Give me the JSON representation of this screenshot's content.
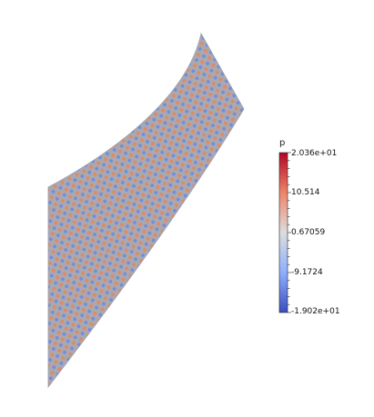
{
  "viewer": {
    "surface_name": "mesh-surface",
    "colormap": {
      "name": "Cool to Warm",
      "low_color": "#3b4cc0",
      "mid_color": "#dddddd",
      "high_color": "#b40426"
    },
    "surface_palette": {
      "blue": "#6f8ede",
      "orange": "#e08a5e",
      "gray": "#a9a9b3"
    }
  },
  "scalar_bar": {
    "title": "p",
    "tick_labels": [
      "2.036e+01",
      "10.514",
      "0.67059",
      "-9.1724",
      "-1.902e+01"
    ]
  }
}
